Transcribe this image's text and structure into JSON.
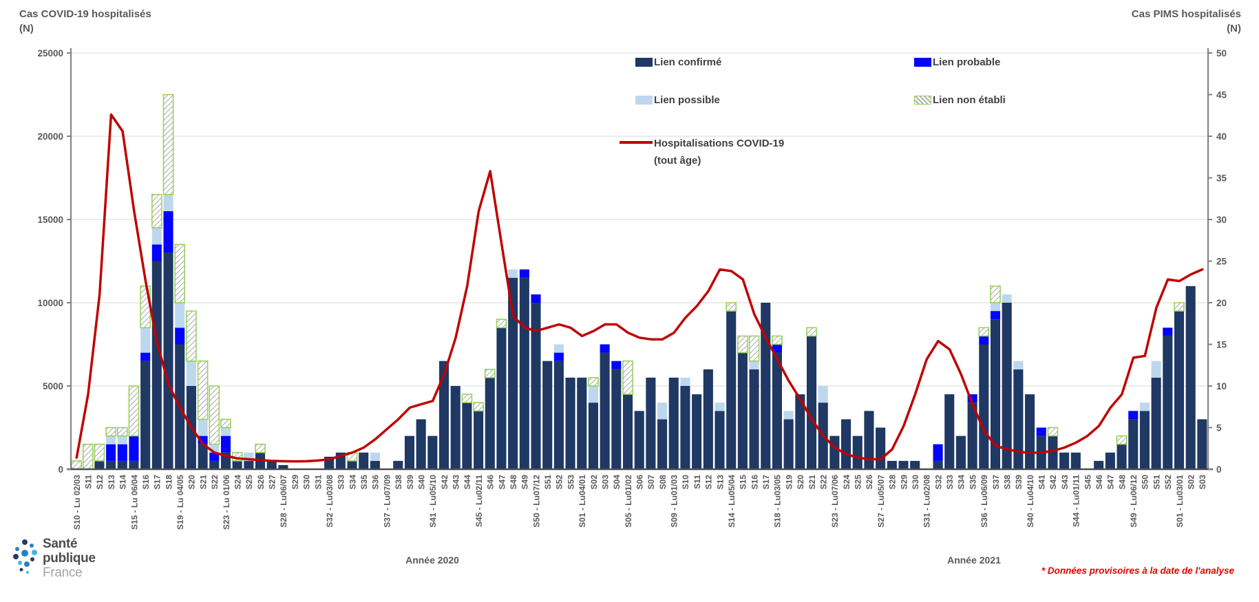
{
  "header": {
    "left_axis_title": "Cas COVID-19 hospitalisés",
    "left_axis_unit": "(N)",
    "right_axis_title": "Cas PIMS hospitalisés",
    "right_axis_unit": "(N)"
  },
  "legend": {
    "confirmed": "Lien confirmé",
    "probable": "Lien probable",
    "possible": "Lien possible",
    "not_established": "Lien non établi",
    "line_label": "Hospitalisations COVID-19\n(tout âge)"
  },
  "annotations": {
    "year_2020": "Année 2020",
    "year_2021": "Année 2021",
    "footnote": "* Données provisoires à la date de l'analyse"
  },
  "logo": {
    "line1": "Santé",
    "line2": "publique",
    "line3": "France"
  },
  "colors": {
    "confirmed": "#1f3864",
    "probable": "#0303ff",
    "possible": "#bdd7ee",
    "not_established_border": "#92d050",
    "hatch_line": "#a6a6a6",
    "covid_line": "#c00000",
    "grid": "#d9d9d9",
    "axis": "#808080",
    "axis_bottom": "#4d4d4d",
    "text": "#595959",
    "footnote": "#e60000"
  },
  "chart_data": {
    "type": "combo: stacked-bar (right axis) + line (left axis)",
    "title": "",
    "grid": true,
    "legend_position": "top-center-inside",
    "left_axis": {
      "label": "Cas COVID-19 hospitalisés (N)",
      "min": 0,
      "max": 25000,
      "step": 5000,
      "ticks": [
        0,
        5000,
        10000,
        15000,
        20000,
        25000
      ]
    },
    "right_axis": {
      "label": "Cas PIMS hospitalisés (N)",
      "min": 0,
      "max": 50,
      "step": 5,
      "ticks": [
        0,
        5,
        10,
        15,
        20,
        25,
        30,
        35,
        40,
        45,
        50
      ]
    },
    "categories": [
      "S10 - Lu 02/03",
      "S11",
      "S12",
      "S13",
      "S14",
      "S15 - Lu 06/04",
      "S16",
      "S17",
      "S18",
      "S19 - Lu 04/05",
      "S20",
      "S21",
      "S22",
      "S23 - Lu 01/06",
      "S24",
      "S25",
      "S26",
      "S27",
      "S28 - Lu06/07",
      "S29",
      "S30",
      "S31",
      "S32 - Lu03/08",
      "S33",
      "S34",
      "S35",
      "S36",
      "S37 - Lu07/09",
      "S38",
      "S39",
      "S40",
      "S41 - Lu05/10",
      "S42",
      "S43",
      "S44",
      "S45 - Lu02/11",
      "S46",
      "S47",
      "S48",
      "S49",
      "S50 - Lu07/12",
      "S51",
      "S52",
      "S53",
      "S01 - Lu04/01",
      "S02",
      "S03",
      "S04",
      "S05 - Lu01/02",
      "S06",
      "S07",
      "S08",
      "S09 - Lu01/03",
      "S10",
      "S11",
      "S12",
      "S13",
      "S14 - Lu05/04",
      "S15",
      "S16",
      "S17",
      "S18 - Lu03/05",
      "S19",
      "S20",
      "S21",
      "S22",
      "S23 - Lu07/06",
      "S24",
      "S25",
      "S26",
      "S27 - Lu05/07",
      "S28",
      "S29",
      "S30",
      "S31 - Lu02/08",
      "S32",
      "S33",
      "S34",
      "S35",
      "S36 - Lu06/09",
      "S37",
      "S38",
      "S39",
      "S40 - Lu04/10",
      "S41",
      "S42",
      "S43",
      "S44 - Lu01/11",
      "S45",
      "S46",
      "S47",
      "S48",
      "S49 - Lu06/12",
      "S50",
      "S51",
      "S52",
      "S01 - Lu03/01",
      "S02",
      "S03"
    ],
    "bars_axis": "right",
    "series": [
      {
        "name": "Lien confirmé",
        "color": "#1f3864",
        "values": [
          0,
          0,
          1,
          1,
          1,
          1,
          13,
          25,
          26,
          15,
          10,
          3,
          1,
          2,
          1,
          1,
          2,
          1,
          0.5,
          0,
          0,
          0,
          1.5,
          2,
          1,
          2,
          1,
          0,
          1,
          4,
          6,
          4,
          13,
          10,
          8,
          7,
          11,
          17,
          23,
          23,
          20,
          13,
          13,
          11,
          11,
          8,
          14,
          12,
          9,
          7,
          11,
          6,
          11,
          10,
          9,
          12,
          7,
          19,
          14,
          12,
          20,
          14,
          6,
          9,
          16,
          8,
          4,
          6,
          4,
          7,
          5,
          1,
          1,
          1,
          0,
          1,
          9,
          4,
          8,
          15,
          18,
          20,
          12,
          9,
          4,
          4,
          2,
          2,
          0,
          1,
          2,
          3,
          6,
          7,
          11,
          16,
          19,
          22,
          6
        ]
      },
      {
        "name": "Lien probable",
        "color": "#0303ff",
        "values": [
          0,
          0,
          0,
          2,
          2,
          3,
          1,
          2,
          5,
          2,
          0,
          1,
          1,
          2,
          0,
          0,
          0,
          0,
          0,
          0,
          0,
          0,
          0,
          0,
          0,
          0,
          0,
          0,
          0,
          0,
          0,
          0,
          0,
          0,
          0,
          0,
          0,
          0,
          0,
          1,
          1,
          0,
          1,
          0,
          0,
          0,
          1,
          1,
          0,
          0,
          0,
          0,
          0,
          0,
          0,
          0,
          0,
          0,
          0,
          0,
          0,
          1,
          0,
          0,
          0,
          0,
          0,
          0,
          0,
          0,
          0,
          0,
          0,
          0,
          0,
          2,
          0,
          0,
          1,
          1,
          1,
          0,
          0,
          0,
          1,
          0,
          0,
          0,
          0,
          0,
          0,
          0,
          1,
          0,
          0,
          1,
          0,
          0,
          0
        ]
      },
      {
        "name": "Lien possible",
        "color": "#bdd7ee",
        "values": [
          0,
          0,
          0,
          1,
          1,
          0,
          3,
          2,
          2,
          3,
          3,
          2,
          1,
          1,
          0,
          1,
          0,
          0,
          0,
          0,
          0,
          0,
          0,
          0,
          0,
          0,
          1,
          0,
          0,
          0,
          0,
          0,
          0,
          0,
          0,
          0,
          0,
          0,
          1,
          0,
          0,
          0,
          1,
          0,
          0,
          2,
          0,
          0,
          0,
          0,
          0,
          2,
          0,
          1,
          0,
          0,
          1,
          0,
          0,
          1,
          0,
          0,
          1,
          0,
          0,
          2,
          0,
          0,
          0,
          0,
          0,
          0,
          0,
          0,
          0,
          0,
          0,
          0,
          0,
          0,
          1,
          1,
          1,
          0,
          0,
          0,
          0,
          0,
          0,
          0,
          0,
          0,
          0,
          1,
          2,
          0,
          0,
          0,
          0
        ]
      },
      {
        "name": "Lien non établi",
        "color": "hatch",
        "values": [
          1,
          3,
          2,
          1,
          1,
          6,
          5,
          4,
          12,
          7,
          6,
          7,
          7,
          1,
          1,
          0,
          1,
          0,
          0,
          0,
          0,
          0,
          0,
          0,
          1,
          0,
          0,
          0,
          0,
          0,
          0,
          0,
          0,
          0,
          1,
          1,
          1,
          1,
          0,
          0,
          0,
          0,
          0,
          0,
          0,
          1,
          0,
          0,
          4,
          0,
          0,
          0,
          0,
          0,
          0,
          0,
          0,
          1,
          2,
          3,
          0,
          1,
          0,
          0,
          1,
          0,
          0,
          0,
          0,
          0,
          0,
          0,
          0,
          0,
          0,
          0,
          0,
          0,
          0,
          1,
          2,
          0,
          0,
          0,
          0,
          1,
          0,
          0,
          0,
          0,
          0,
          1,
          0,
          0,
          0,
          0,
          1,
          0,
          0
        ]
      }
    ],
    "line": {
      "name": "Hospitalisations COVID-19 (tout âge)",
      "color": "#c00000",
      "axis": "left",
      "values": [
        700,
        4500,
        10500,
        21300,
        20300,
        15500,
        11300,
        7600,
        5100,
        3700,
        2500,
        1500,
        1000,
        800,
        650,
        600,
        550,
        500,
        480,
        470,
        480,
        520,
        600,
        800,
        1000,
        1300,
        1800,
        2400,
        3000,
        3700,
        3900,
        4100,
        5700,
        7900,
        11000,
        15500,
        17900,
        13500,
        9200,
        8500,
        8300,
        8500,
        8700,
        8500,
        8000,
        8300,
        8700,
        8700,
        8200,
        7900,
        7800,
        7800,
        8200,
        9100,
        9800,
        10700,
        12000,
        11900,
        11400,
        9300,
        7900,
        6600,
        5300,
        4200,
        3000,
        2000,
        1300,
        900,
        700,
        600,
        600,
        1200,
        2600,
        4500,
        6600,
        7700,
        7200,
        5700,
        3900,
        2300,
        1400,
        1200,
        1050,
        980,
        1000,
        1100,
        1300,
        1600,
        2000,
        2600,
        3700,
        4500,
        6700,
        6800,
        9700,
        11400,
        11300,
        11700,
        12000
      ]
    }
  }
}
